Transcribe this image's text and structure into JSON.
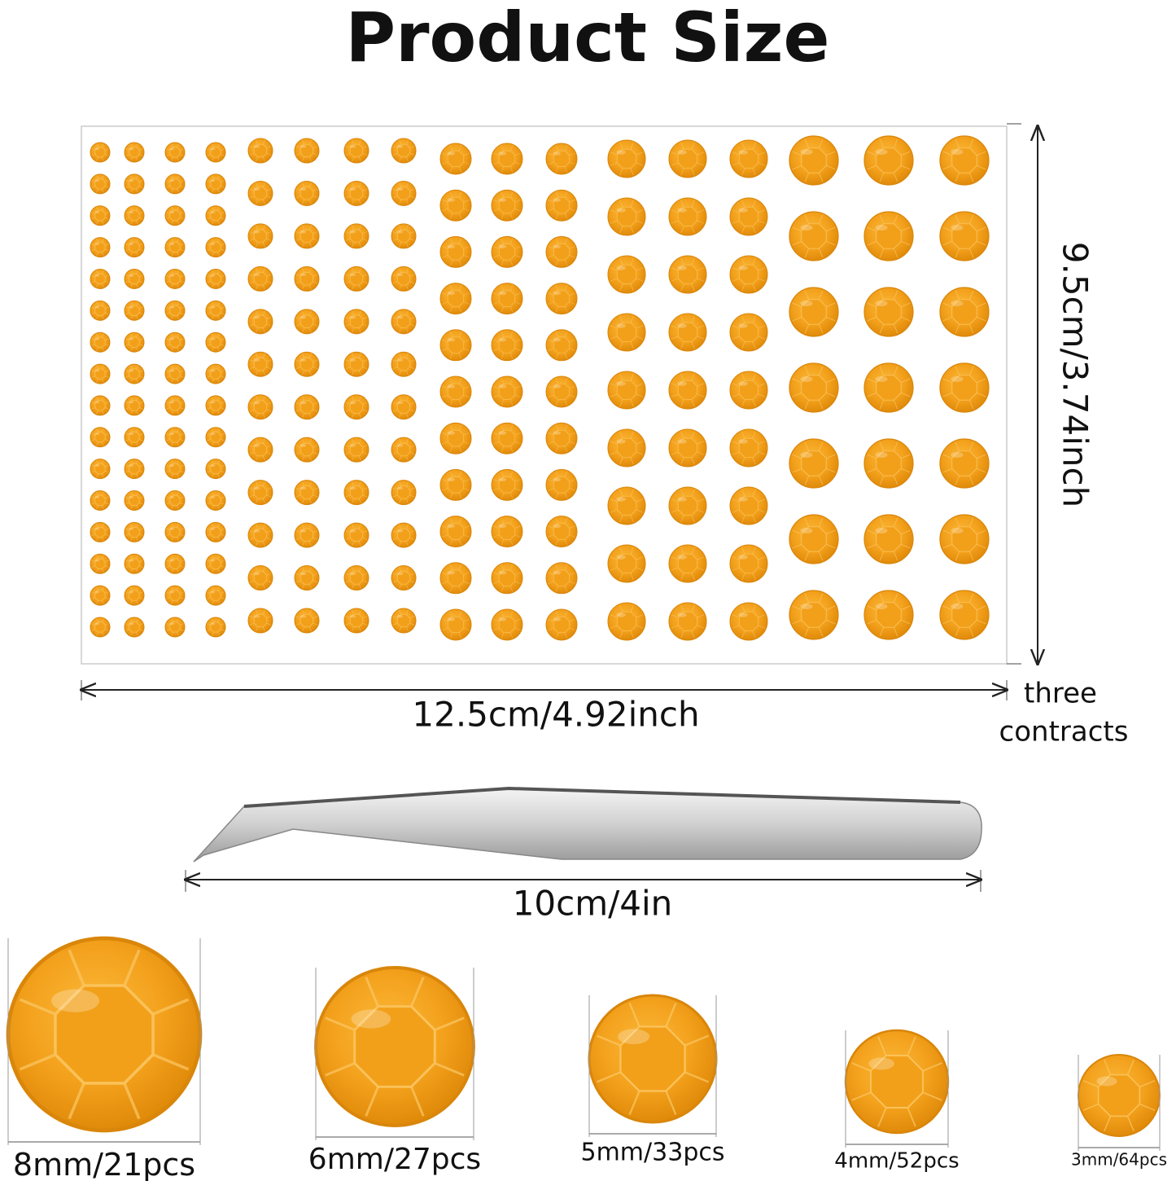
{
  "header": {
    "title": "Product Size"
  },
  "sheet": {
    "height_label": "9.5cm/3.74inch",
    "width_label": "12.5cm/4.92inch",
    "note": [
      "three",
      "contracts"
    ]
  },
  "tweezers": {
    "length_label": "10cm/4in"
  },
  "sizes": [
    "8mm/21pcs",
    "6mm/27pcs",
    "5mm/33pcs",
    "4mm/52pcs",
    "3mm/64pcs"
  ]
}
